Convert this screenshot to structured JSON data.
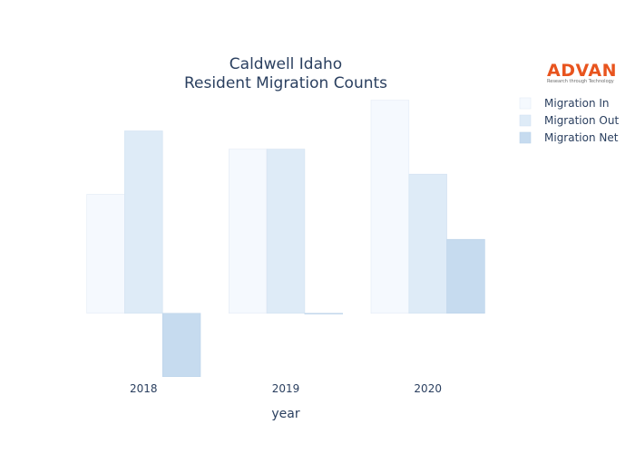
{
  "chart_data": {
    "type": "bar",
    "title": "Caldwell Idaho",
    "subtitle": "Resident Migration Counts",
    "xlabel": "year",
    "ylabel": "",
    "categories": [
      "2018",
      "2019",
      "2020"
    ],
    "series": [
      {
        "name": "Migration In",
        "values": [
          124,
          171,
          222
        ],
        "color": "#f5f9fe"
      },
      {
        "name": "Migration Out",
        "values": [
          190,
          171,
          145
        ],
        "color": "#deebf7"
      },
      {
        "name": "Migration Net",
        "values": [
          -66,
          0,
          77
        ],
        "color": "#c6dbef"
      }
    ],
    "ylim": [
      -70,
      232
    ],
    "grid": false,
    "y_tick_labels_shown": false,
    "legend_placement": "top-right"
  },
  "logo": {
    "name": "ADVAN",
    "tagline": "Research through Technology",
    "color": "#e8541e"
  }
}
